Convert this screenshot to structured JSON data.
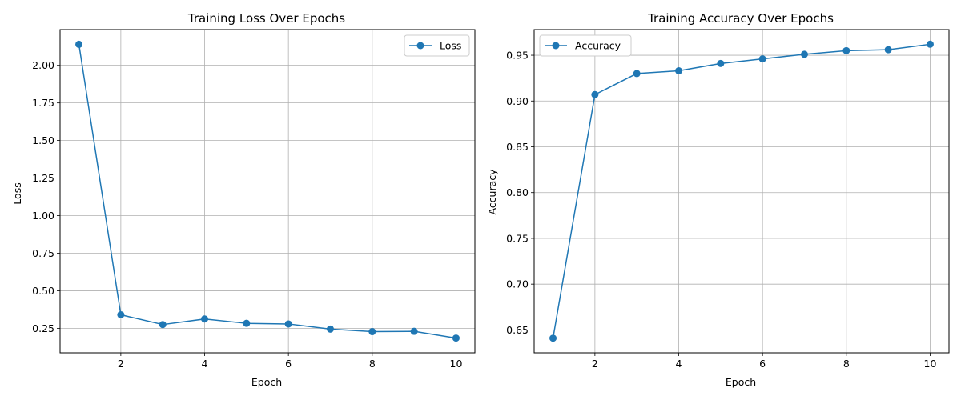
{
  "chart_data": [
    {
      "type": "line",
      "title": "Training Loss Over Epochs",
      "xlabel": "Epoch",
      "ylabel": "Loss",
      "x": [
        1,
        2,
        3,
        4,
        5,
        6,
        7,
        8,
        9,
        10
      ],
      "series": [
        {
          "name": "Loss",
          "values": [
            2.14,
            0.34,
            0.275,
            0.312,
            0.283,
            0.279,
            0.245,
            0.228,
            0.23,
            0.185
          ]
        }
      ],
      "xlim": [
        0.55,
        10.45
      ],
      "ylim": [
        0.087,
        2.238
      ],
      "xticks": [
        2,
        4,
        6,
        8,
        10
      ],
      "yticks": [
        0.25,
        0.5,
        0.75,
        1.0,
        1.25,
        1.5,
        1.75,
        2.0
      ],
      "ytick_decimals": 2,
      "grid": true,
      "legend_position": "upper right",
      "color": "#1f77b4"
    },
    {
      "type": "line",
      "title": "Training Accuracy Over Epochs",
      "xlabel": "Epoch",
      "ylabel": "Accuracy",
      "x": [
        1,
        2,
        3,
        4,
        5,
        6,
        7,
        8,
        9,
        10
      ],
      "series": [
        {
          "name": "Accuracy",
          "values": [
            0.641,
            0.907,
            0.93,
            0.933,
            0.941,
            0.946,
            0.951,
            0.955,
            0.956,
            0.962
          ]
        }
      ],
      "xlim": [
        0.55,
        10.45
      ],
      "ylim": [
        0.625,
        0.978
      ],
      "xticks": [
        2,
        4,
        6,
        8,
        10
      ],
      "yticks": [
        0.65,
        0.7,
        0.75,
        0.8,
        0.85,
        0.9,
        0.95
      ],
      "ytick_decimals": 2,
      "grid": true,
      "legend_position": "upper left",
      "color": "#1f77b4"
    }
  ]
}
